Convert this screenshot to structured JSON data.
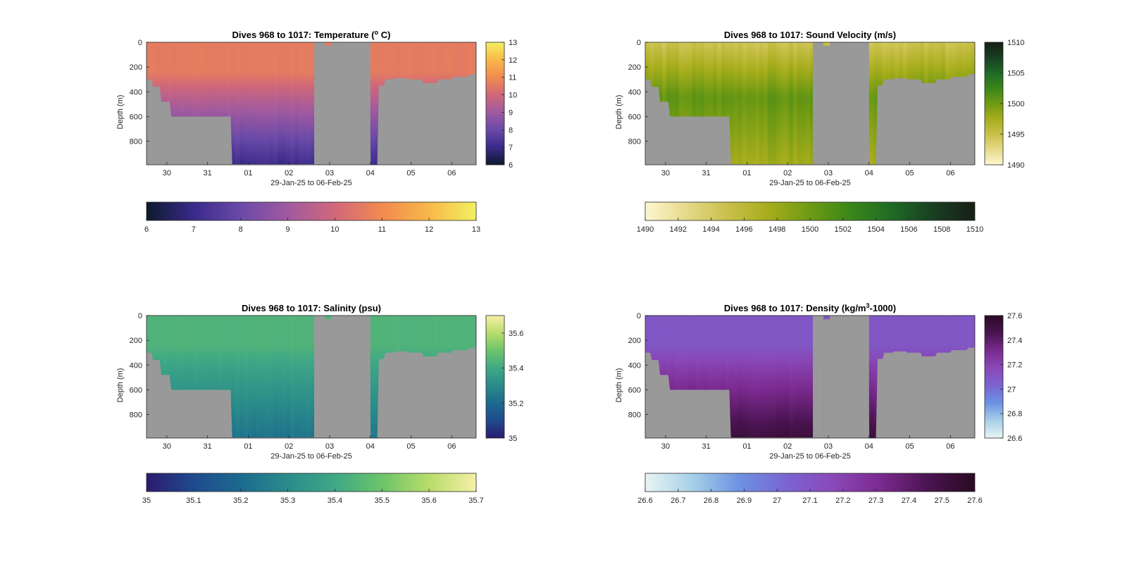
{
  "chart_data": [
    {
      "id": "temperature",
      "type": "heatmap",
      "title_prefix": "Dives 968 to 1017: Temperature (",
      "title_sup": "o",
      "title_suffix": " C)",
      "xlabel": "29-Jan-25 to 06-Feb-25",
      "ylabel": "Depth (m)",
      "x_ticks": [
        "30",
        "31",
        "01",
        "02",
        "03",
        "04",
        "05",
        "06"
      ],
      "y_ticks": [
        "0",
        "200",
        "400",
        "600",
        "800"
      ],
      "ylim": [
        0,
        990
      ],
      "colorbar_ticks": [
        "6",
        "7",
        "8",
        "9",
        "10",
        "11",
        "12",
        "13"
      ],
      "colorbar_range": [
        6,
        13
      ],
      "horizontal_colorbar_ticks": [
        "6",
        "7",
        "8",
        "9",
        "10",
        "11",
        "12",
        "13"
      ],
      "colormap": [
        "#0d1a2d",
        "#3a2a8a",
        "#6a4aa8",
        "#a05aa0",
        "#d0687a",
        "#f28a50",
        "#f8b84a",
        "#f2f060"
      ],
      "upper_value": 10.6,
      "deep_value": 7.1
    },
    {
      "id": "sound_velocity",
      "type": "heatmap",
      "title_prefix": "Dives 968 to 1017: Sound Velocity (m/s)",
      "title_sup": "",
      "title_suffix": "",
      "xlabel": "29-Jan-25 to 06-Feb-25",
      "ylabel": "Depth (m)",
      "x_ticks": [
        "30",
        "31",
        "01",
        "02",
        "03",
        "04",
        "05",
        "06"
      ],
      "y_ticks": [
        "0",
        "200",
        "400",
        "600",
        "800"
      ],
      "ylim": [
        0,
        990
      ],
      "colorbar_ticks": [
        "1490",
        "1495",
        "1500",
        "1505",
        "1510"
      ],
      "colorbar_range": [
        1490,
        1510
      ],
      "horizontal_colorbar_ticks": [
        "1490",
        "1492",
        "1494",
        "1496",
        "1498",
        "1500",
        "1502",
        "1504",
        "1506",
        "1508",
        "1510"
      ],
      "colormap": [
        "#fdf7d0",
        "#e6d98a",
        "#c9c04a",
        "#a6ad1c",
        "#6e9a14",
        "#3a861a",
        "#1f6a26",
        "#193e22",
        "#161f15"
      ],
      "surface_value": 1494.5,
      "mid_value": 1500.5,
      "deep_value": 1497.5
    },
    {
      "id": "salinity",
      "type": "heatmap",
      "title_prefix": "Dives 968 to 1017: Salinity (psu)",
      "title_sup": "",
      "title_suffix": "",
      "xlabel": "29-Jan-25 to 06-Feb-25",
      "ylabel": "Depth (m)",
      "x_ticks": [
        "30",
        "31",
        "01",
        "02",
        "03",
        "04",
        "05",
        "06"
      ],
      "y_ticks": [
        "0",
        "200",
        "400",
        "600",
        "800"
      ],
      "ylim": [
        0,
        990
      ],
      "colorbar_ticks": [
        "35",
        "35.2",
        "35.4",
        "35.6"
      ],
      "colorbar_range": [
        35,
        35.7
      ],
      "horizontal_colorbar_ticks": [
        "35",
        "35.1",
        "35.2",
        "35.3",
        "35.4",
        "35.5",
        "35.6",
        "35.7"
      ],
      "colormap": [
        "#2c1a6e",
        "#1f4a8e",
        "#1c6a8e",
        "#2a8c8a",
        "#3fa886",
        "#6cc46a",
        "#b8dc6a",
        "#f6f0a6"
      ],
      "upper_value": 35.44,
      "deep_value": 35.23
    },
    {
      "id": "density",
      "type": "heatmap",
      "title_prefix": "Dives 968 to 1017: Density (kg/m",
      "title_sup": "3",
      "title_suffix": "-1000)",
      "xlabel": "29-Jan-25 to 06-Feb-25",
      "ylabel": "Depth (m)",
      "x_ticks": [
        "30",
        "31",
        "01",
        "02",
        "03",
        "04",
        "05",
        "06"
      ],
      "y_ticks": [
        "0",
        "200",
        "400",
        "600",
        "800"
      ],
      "ylim": [
        0,
        990
      ],
      "colorbar_ticks": [
        "26.6",
        "26.8",
        "27",
        "27.2",
        "27.4",
        "27.6"
      ],
      "colorbar_range": [
        26.6,
        27.6
      ],
      "horizontal_colorbar_ticks": [
        "26.6",
        "26.7",
        "26.8",
        "26.9",
        "27",
        "27.1",
        "27.2",
        "27.3",
        "27.4",
        "27.5",
        "27.6"
      ],
      "colormap": [
        "#eaf4f4",
        "#a6d0e8",
        "#6c92e2",
        "#7a64d2",
        "#8a48b8",
        "#7a2a8e",
        "#4a1450",
        "#2a0a22"
      ],
      "upper_value": 27.1,
      "deep_value": 27.52
    }
  ],
  "colors": {
    "land_gray": "#999999",
    "axis": "#262626"
  },
  "bathymetry": {
    "x_days": [
      0,
      0.15,
      0.35,
      0.6,
      2.1,
      4.35,
      4.5,
      5.0,
      5.05,
      5.5,
      5.7,
      5.85,
      6.1,
      6.4,
      6.8,
      7.15,
      7.5,
      7.9,
      8.1
    ],
    "bottom_depth_m": [
      300,
      360,
      480,
      600,
      985,
      985,
      0,
      0,
      0,
      990,
      350,
      300,
      290,
      300,
      330,
      300,
      280,
      260,
      250
    ],
    "notes_gap": "Gray region marks where no data exists (below bottom)"
  }
}
